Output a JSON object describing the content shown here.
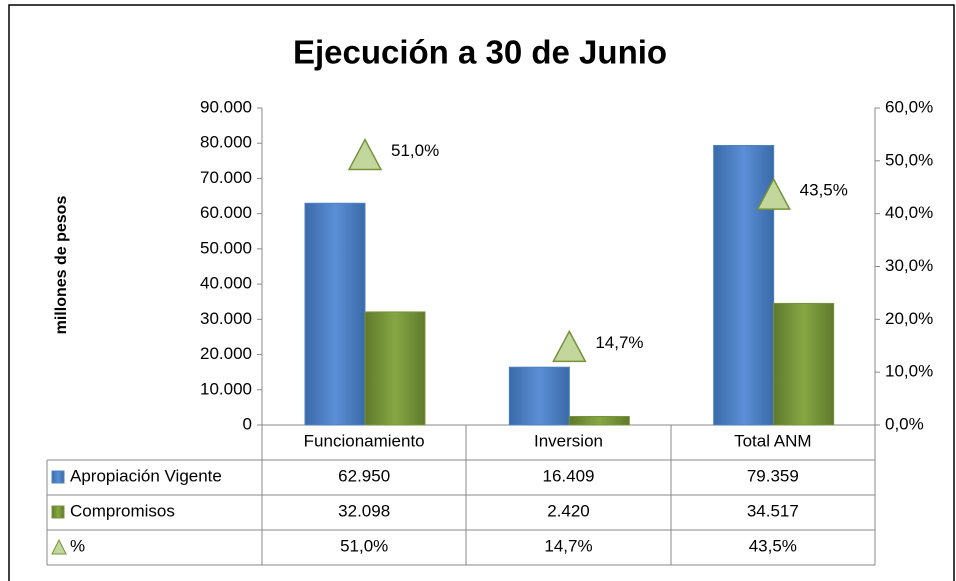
{
  "chart_data": {
    "type": "bar",
    "title": "Ejecución a 30 de Junio",
    "y_axis_label": "millones de pesos",
    "categories": [
      "Funcionamiento",
      "Inversion",
      "Total ANM"
    ],
    "series": [
      {
        "name": "Apropiación Vigente",
        "color": "#4f81bd",
        "values": [
          62950,
          16409,
          79359
        ],
        "value_labels": [
          "62.950",
          "16.409",
          "79.359"
        ]
      },
      {
        "name": "Compromisos",
        "color": "#77933c",
        "values": [
          32098,
          2420,
          34517
        ],
        "value_labels": [
          "32.098",
          "2.420",
          "34.517"
        ]
      },
      {
        "name": "%",
        "color": "#c3d69b",
        "axis": "y2",
        "values": [
          51.0,
          14.7,
          43.5
        ],
        "value_labels": [
          "51,0%",
          "14,7%",
          "43,5%"
        ]
      }
    ],
    "ylim": [
      0,
      90000
    ],
    "yticks": [
      0,
      {
        "value": 10000,
        "label": "10.000"
      },
      {
        "value": 20000,
        "label": "20.000"
      },
      {
        "value": 30000,
        "label": "30.000"
      },
      {
        "value": 40000,
        "label": "40.000"
      },
      {
        "value": 50000,
        "label": "50.000"
      },
      {
        "value": 60000,
        "label": "60.000"
      },
      {
        "value": 70000,
        "label": "70.000"
      },
      {
        "value": 80000,
        "label": "80.000"
      },
      {
        "value": 90000,
        "label": "90.000"
      }
    ],
    "y2lim": [
      0,
      60
    ],
    "y2ticks": [
      {
        "value": 0,
        "label": "0,0%"
      },
      {
        "value": 10,
        "label": "10,0%"
      },
      {
        "value": 20,
        "label": "20,0%"
      },
      {
        "value": 30,
        "label": "30,0%"
      },
      {
        "value": 40,
        "label": "40,0%"
      },
      {
        "value": 50,
        "label": "50,0%"
      },
      {
        "value": 60,
        "label": "60,0%"
      }
    ]
  }
}
